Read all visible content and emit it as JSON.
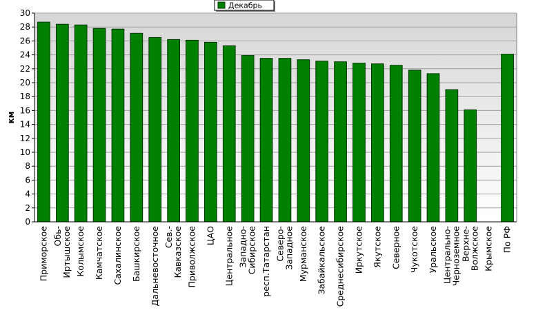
{
  "chart_data": {
    "type": "bar",
    "ylabel": "км",
    "ylim": [
      0,
      30
    ],
    "ytick_step": 2,
    "grid": true,
    "legend_position": "top-center",
    "colors": {
      "bar_fill": "#008000",
      "bar_stroke": "#003300",
      "plot_bg_top": "#d6d6d6",
      "plot_bg_bottom": "#ffffff",
      "grid": "#a0a0a0"
    },
    "categories": [
      "Приморское",
      "Обь-\nИртышское",
      "Колымское",
      "Камчатское",
      "Сахалинское",
      "Башкирское",
      "Дальневосточное",
      "Сев.-\nКавказское",
      "Приволжское",
      "ЦАО",
      "Центральное",
      "Западно-\nСибирское",
      "респ.Татарстан",
      "Северо-\nЗападное",
      "Мурманское",
      "Забайкальское",
      "Среднесибирское",
      "Иркутское",
      "Якутское",
      "Северное",
      "Чукотское",
      "Уральское",
      "Центрально-\nЧерноземное",
      "Верхне-\nВолжское",
      "Крымское",
      "По РФ"
    ],
    "series": [
      {
        "name": "Декабрь",
        "values": [
          28.7,
          28.4,
          28.3,
          27.8,
          27.7,
          27.1,
          26.5,
          26.2,
          26.1,
          25.8,
          25.3,
          23.9,
          23.5,
          23.5,
          23.3,
          23.1,
          23.0,
          22.8,
          22.7,
          22.5,
          21.8,
          21.3,
          19.0,
          16.1,
          0,
          24.1
        ]
      }
    ]
  }
}
